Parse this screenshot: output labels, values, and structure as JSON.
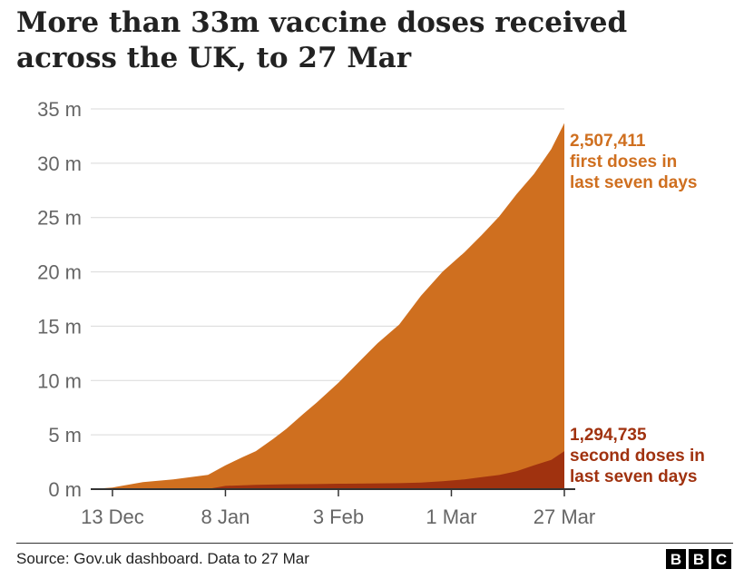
{
  "title": "More than 33m vaccine doses received across the UK, to 27 Mar",
  "source": "Source: Gov.uk dashboard. Data to 27 Mar",
  "logo": [
    "B",
    "B",
    "C"
  ],
  "colors": {
    "first_doses": "#cf6f1f",
    "second_doses": "#a0320f",
    "grid": "#d9d9d9",
    "axis": "#333333",
    "tick_label": "#666666"
  },
  "chart_data": {
    "type": "area",
    "stacked": true,
    "grid": true,
    "y_unit_suffix": " m",
    "ylim": [
      0,
      35
    ],
    "yticks": [
      0,
      5,
      10,
      15,
      20,
      25,
      30,
      35
    ],
    "ytick_labels": [
      "0 m",
      "5 m",
      "10 m",
      "15 m",
      "20 m",
      "25 m",
      "30 m",
      "35 m"
    ],
    "xlim": [
      "2020-12-08",
      "2021-03-27"
    ],
    "xticks": [
      "2020-12-13",
      "2021-01-08",
      "2021-02-03",
      "2021-03-01",
      "2021-03-27"
    ],
    "xtick_labels": [
      "13 Dec",
      "8 Jan",
      "3 Feb",
      "1 Mar",
      "27 Mar"
    ],
    "series": [
      {
        "key": "second",
        "annotation_value": "1,294,735",
        "annotation_lines": [
          "second doses in",
          "last seven days"
        ],
        "points": [
          [
            "2020-12-08",
            0
          ],
          [
            "2020-12-20",
            0
          ],
          [
            "2020-12-27",
            0
          ],
          [
            "2021-01-04",
            0.02
          ],
          [
            "2021-01-08",
            0.3
          ],
          [
            "2021-01-15",
            0.4
          ],
          [
            "2021-01-22",
            0.45
          ],
          [
            "2021-01-29",
            0.47
          ],
          [
            "2021-02-03",
            0.5
          ],
          [
            "2021-02-10",
            0.52
          ],
          [
            "2021-02-17",
            0.55
          ],
          [
            "2021-02-22",
            0.6
          ],
          [
            "2021-02-27",
            0.73
          ],
          [
            "2021-03-04",
            0.9
          ],
          [
            "2021-03-08",
            1.1
          ],
          [
            "2021-03-12",
            1.3
          ],
          [
            "2021-03-16",
            1.65
          ],
          [
            "2021-03-20",
            2.2
          ],
          [
            "2021-03-24",
            2.7
          ],
          [
            "2021-03-27",
            3.5
          ]
        ]
      },
      {
        "key": "first",
        "annotation_value": "2,507,411",
        "annotation_lines": [
          "first doses in",
          "last seven days"
        ],
        "points": [
          [
            "2020-12-08",
            0
          ],
          [
            "2020-12-13",
            0.15
          ],
          [
            "2020-12-20",
            0.65
          ],
          [
            "2020-12-27",
            0.9
          ],
          [
            "2021-01-04",
            1.3
          ],
          [
            "2021-01-08",
            1.9
          ],
          [
            "2021-01-12",
            2.6
          ],
          [
            "2021-01-15",
            3.1
          ],
          [
            "2021-01-19",
            4.2
          ],
          [
            "2021-01-22",
            5.1
          ],
          [
            "2021-01-26",
            6.5
          ],
          [
            "2021-01-29",
            7.5
          ],
          [
            "2021-02-03",
            9.3
          ],
          [
            "2021-02-07",
            10.9
          ],
          [
            "2021-02-12",
            12.9
          ],
          [
            "2021-02-17",
            14.6
          ],
          [
            "2021-02-22",
            17.2
          ],
          [
            "2021-02-27",
            19.3
          ],
          [
            "2021-03-04",
            20.9
          ],
          [
            "2021-03-08",
            22.3
          ],
          [
            "2021-03-12",
            23.8
          ],
          [
            "2021-03-16",
            25.5
          ],
          [
            "2021-03-20",
            26.8
          ],
          [
            "2021-03-24",
            28.6
          ],
          [
            "2021-03-27",
            30.2
          ]
        ]
      }
    ]
  }
}
